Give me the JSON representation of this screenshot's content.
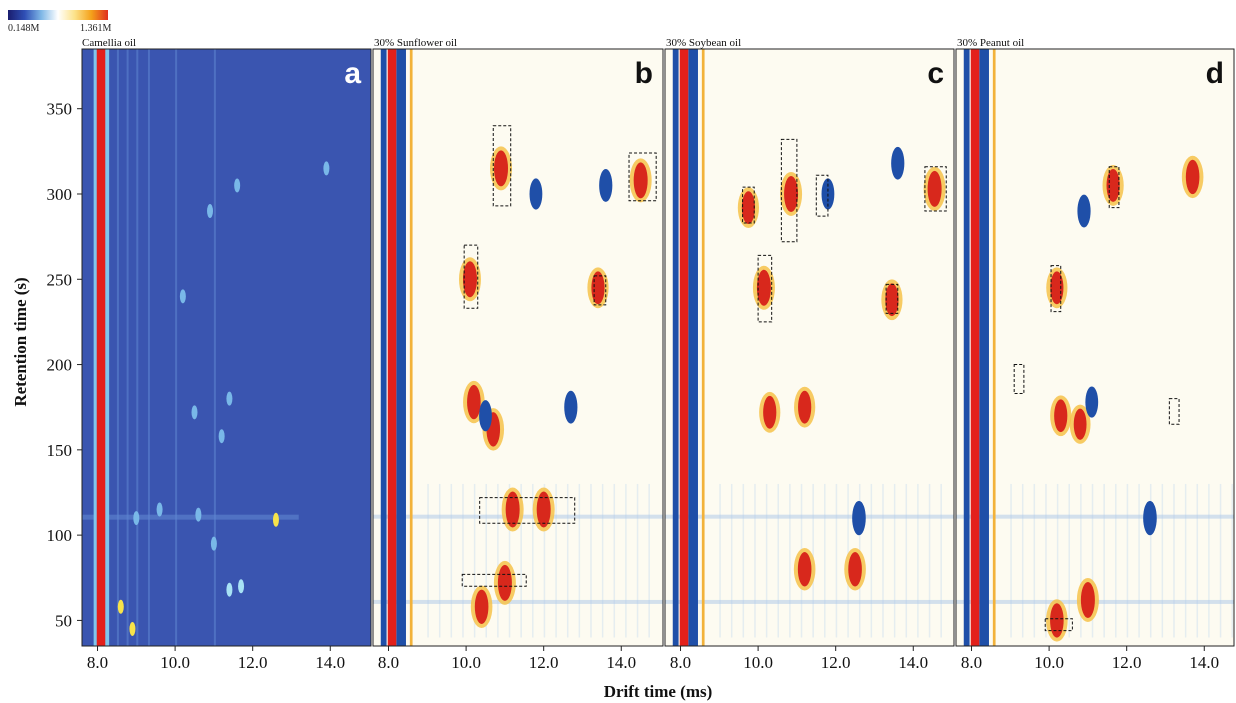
{
  "chart_data": {
    "type": "heatmap",
    "colorbar": {
      "min_label": "0.148M",
      "max_label": "1.361M",
      "colors": [
        "#1a1d6e",
        "#2f4fb5",
        "#7fb7e6",
        "#ffffff",
        "#fce28a",
        "#f4a11a",
        "#e0301e"
      ]
    },
    "xlabel": "Drift time (ms)",
    "ylabel": "Retention time (s)",
    "xlim": [
      7.6,
      15.05
    ],
    "ylim": [
      35,
      385
    ],
    "xticks": [
      "8.0",
      "10.0",
      "12.0",
      "14.0"
    ],
    "yticks": [
      "50",
      "100",
      "150",
      "200",
      "250",
      "300",
      "350"
    ],
    "colors": {
      "background_a": "#3a55b0",
      "background_diff": "#fdfbf1",
      "positive": "#d8281c",
      "negative": "#1f4fa8",
      "reactant_ion_peak": "#e3201b"
    },
    "panels": [
      {
        "id": "a",
        "title": "Camellia oil",
        "mode": "absolute",
        "peaks": [
          {
            "x": 10.2,
            "y": 240,
            "v": 0.6
          },
          {
            "x": 10.9,
            "y": 290,
            "v": 0.55
          },
          {
            "x": 11.6,
            "y": 305,
            "v": 0.5
          },
          {
            "x": 13.9,
            "y": 315,
            "v": 0.5
          },
          {
            "x": 10.5,
            "y": 172,
            "v": 0.6
          },
          {
            "x": 11.4,
            "y": 180,
            "v": 0.6
          },
          {
            "x": 11.2,
            "y": 158,
            "v": 0.5
          },
          {
            "x": 9.0,
            "y": 110,
            "v": 0.6
          },
          {
            "x": 9.6,
            "y": 115,
            "v": 0.6
          },
          {
            "x": 10.6,
            "y": 112,
            "v": 0.5
          },
          {
            "x": 12.6,
            "y": 109,
            "v": 1.0
          },
          {
            "x": 11.0,
            "y": 95,
            "v": 0.5
          },
          {
            "x": 11.7,
            "y": 70,
            "v": 0.8
          },
          {
            "x": 11.4,
            "y": 68,
            "v": 0.7
          },
          {
            "x": 8.9,
            "y": 45,
            "v": 0.9
          },
          {
            "x": 8.6,
            "y": 58,
            "v": 0.9
          }
        ]
      },
      {
        "id": "b",
        "title": "30% Sunflower oil",
        "mode": "difference",
        "peaks": [
          {
            "x": 10.9,
            "y": 315,
            "v": 1.0
          },
          {
            "x": 14.5,
            "y": 308,
            "v": 1.0
          },
          {
            "x": 10.1,
            "y": 250,
            "v": 1.0
          },
          {
            "x": 13.4,
            "y": 245,
            "v": 0.8
          },
          {
            "x": 10.2,
            "y": 178,
            "v": 0.9
          },
          {
            "x": 10.7,
            "y": 162,
            "v": 0.9
          },
          {
            "x": 11.2,
            "y": 115,
            "v": 1.0
          },
          {
            "x": 12.0,
            "y": 115,
            "v": 1.0
          },
          {
            "x": 11.0,
            "y": 72,
            "v": 1.0
          },
          {
            "x": 10.4,
            "y": 58,
            "v": 0.9
          },
          {
            "x": 13.6,
            "y": 305,
            "v": -0.8
          },
          {
            "x": 11.8,
            "y": 300,
            "v": -0.7
          },
          {
            "x": 10.5,
            "y": 170,
            "v": -0.7
          },
          {
            "x": 12.7,
            "y": 175,
            "v": -0.8
          }
        ],
        "boxes": [
          {
            "x0": 10.7,
            "x1": 11.15,
            "y0": 293,
            "y1": 340
          },
          {
            "x0": 14.2,
            "x1": 14.9,
            "y0": 296,
            "y1": 324
          },
          {
            "x0": 9.95,
            "x1": 10.3,
            "y0": 233,
            "y1": 270
          },
          {
            "x0": 13.3,
            "x1": 13.6,
            "y0": 235,
            "y1": 252
          },
          {
            "x0": 10.35,
            "x1": 12.8,
            "y0": 107,
            "y1": 122
          },
          {
            "x0": 9.9,
            "x1": 11.55,
            "y0": 70,
            "y1": 77
          }
        ]
      },
      {
        "id": "c",
        "title": "30% Soybean oil",
        "mode": "difference",
        "peaks": [
          {
            "x": 10.85,
            "y": 300,
            "v": 1.0
          },
          {
            "x": 14.55,
            "y": 303,
            "v": 1.0
          },
          {
            "x": 9.75,
            "y": 292,
            "v": 0.8
          },
          {
            "x": 10.15,
            "y": 245,
            "v": 1.0
          },
          {
            "x": 13.45,
            "y": 238,
            "v": 0.8
          },
          {
            "x": 10.3,
            "y": 172,
            "v": 0.8
          },
          {
            "x": 11.2,
            "y": 175,
            "v": 0.8
          },
          {
            "x": 11.2,
            "y": 80,
            "v": 0.9
          },
          {
            "x": 12.5,
            "y": 80,
            "v": 0.9
          },
          {
            "x": 11.8,
            "y": 300,
            "v": -0.7
          },
          {
            "x": 13.6,
            "y": 318,
            "v": -0.8
          },
          {
            "x": 12.6,
            "y": 110,
            "v": -0.9
          }
        ],
        "boxes": [
          {
            "x0": 10.6,
            "x1": 11.0,
            "y0": 272,
            "y1": 332
          },
          {
            "x0": 14.3,
            "x1": 14.85,
            "y0": 290,
            "y1": 316
          },
          {
            "x0": 9.6,
            "x1": 9.9,
            "y0": 283,
            "y1": 304
          },
          {
            "x0": 10.0,
            "x1": 10.35,
            "y0": 225,
            "y1": 264
          },
          {
            "x0": 13.3,
            "x1": 13.6,
            "y0": 230,
            "y1": 247
          },
          {
            "x0": 11.5,
            "x1": 11.8,
            "y0": 287,
            "y1": 311
          }
        ]
      },
      {
        "id": "d",
        "title": "30% Peanut oil",
        "mode": "difference",
        "peaks": [
          {
            "x": 13.7,
            "y": 310,
            "v": 0.9
          },
          {
            "x": 11.65,
            "y": 305,
            "v": 0.8
          },
          {
            "x": 10.2,
            "y": 245,
            "v": 0.8
          },
          {
            "x": 10.3,
            "y": 170,
            "v": 0.8
          },
          {
            "x": 10.8,
            "y": 165,
            "v": 0.7
          },
          {
            "x": 11.0,
            "y": 62,
            "v": 1.0
          },
          {
            "x": 10.2,
            "y": 50,
            "v": 0.9
          },
          {
            "x": 10.9,
            "y": 290,
            "v": -0.8
          },
          {
            "x": 12.6,
            "y": 110,
            "v": -0.9
          },
          {
            "x": 11.1,
            "y": 178,
            "v": -0.7
          }
        ],
        "boxes": [
          {
            "x0": 11.55,
            "x1": 11.8,
            "y0": 292,
            "y1": 316
          },
          {
            "x0": 10.05,
            "x1": 10.3,
            "y0": 231,
            "y1": 258
          },
          {
            "x0": 9.9,
            "x1": 10.6,
            "y0": 44,
            "y1": 51
          },
          {
            "x0": 9.1,
            "x1": 9.35,
            "y0": 183,
            "y1": 200
          },
          {
            "x0": 13.1,
            "x1": 13.35,
            "y0": 165,
            "y1": 180
          }
        ]
      }
    ]
  }
}
